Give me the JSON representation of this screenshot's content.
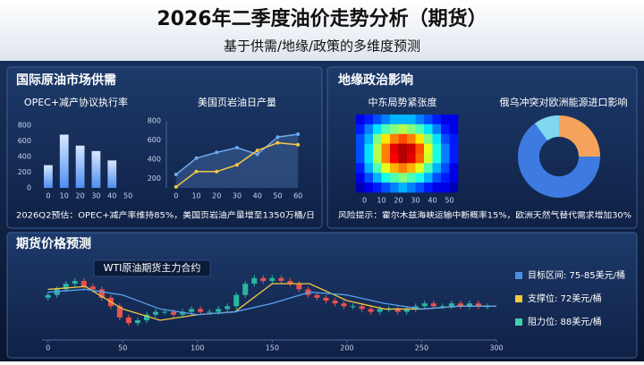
{
  "header": {
    "title": "2026年二季度油价走势分析（期货）",
    "subtitle": "基于供需/地缘/政策的多维度预测"
  },
  "panels": [
    {
      "title": "国际原油市场供需",
      "note": "2026Q2预估：OPEC+减产率维持85%，美国页岩油产量增至1350万桶/日"
    },
    {
      "title": "地缘政治影响",
      "note": "风险提示：霍尔木兹海峡运输中断概率15%，欧洲天然气替代需求增加30%"
    },
    {
      "title": "期货价格预测"
    }
  ],
  "chart_data": [
    {
      "type": "bar",
      "title": "OPEC+减产协议执行率",
      "x": [
        0,
        10,
        20,
        30,
        40
      ],
      "values": [
        290,
        680,
        540,
        470,
        350
      ],
      "color": "#4f8ef0",
      "xlim": [
        -5,
        55
      ],
      "xticks": [
        0,
        10,
        20,
        30,
        40,
        50
      ],
      "ylim": [
        0,
        800
      ],
      "yticks": [
        0,
        200,
        400,
        600,
        800
      ]
    },
    {
      "type": "line",
      "title": "美国页岩油日产量",
      "x": [
        0,
        10,
        20,
        30,
        40,
        50,
        60
      ],
      "series": [
        {
          "color": "#6fa8f0",
          "values": [
            240,
            410,
            470,
            520,
            450,
            630,
            660
          ]
        },
        {
          "color": "#f5c842",
          "values": [
            110,
            270,
            270,
            340,
            490,
            570,
            550
          ]
        }
      ],
      "xlim": [
        -3,
        63
      ],
      "xticks": [
        0,
        10,
        20,
        30,
        40,
        50,
        60
      ],
      "ylim": [
        100,
        800
      ],
      "yticks": [
        200,
        400,
        600,
        800
      ]
    },
    {
      "type": "heatmap",
      "title": "中东局势紧张度",
      "colormap": "jet",
      "xlim": [
        -5,
        55
      ],
      "xticks": [
        0,
        10,
        20,
        30,
        40,
        50
      ],
      "values": [
        [
          0.1,
          0.15,
          0.2,
          0.25,
          0.3,
          0.3,
          0.3,
          0.25,
          0.2,
          0.15,
          0.1,
          0.1
        ],
        [
          0.15,
          0.25,
          0.35,
          0.45,
          0.5,
          0.55,
          0.5,
          0.45,
          0.35,
          0.25,
          0.15,
          0.1
        ],
        [
          0.2,
          0.3,
          0.5,
          0.65,
          0.75,
          0.8,
          0.75,
          0.65,
          0.5,
          0.35,
          0.2,
          0.15
        ],
        [
          0.2,
          0.35,
          0.55,
          0.75,
          0.9,
          0.95,
          0.92,
          0.8,
          0.6,
          0.4,
          0.25,
          0.15
        ],
        [
          0.2,
          0.35,
          0.55,
          0.75,
          0.88,
          0.95,
          0.9,
          0.78,
          0.58,
          0.4,
          0.25,
          0.15
        ],
        [
          0.15,
          0.3,
          0.45,
          0.6,
          0.7,
          0.75,
          0.7,
          0.6,
          0.45,
          0.3,
          0.2,
          0.1
        ],
        [
          0.1,
          0.2,
          0.3,
          0.4,
          0.45,
          0.5,
          0.45,
          0.4,
          0.3,
          0.2,
          0.15,
          0.1
        ],
        [
          0.05,
          0.1,
          0.15,
          0.2,
          0.25,
          0.3,
          0.25,
          0.2,
          0.15,
          0.1,
          0.1,
          0.05
        ]
      ]
    },
    {
      "type": "pie",
      "title": "俄乌冲突对欧洲能源进口影响",
      "donut": true,
      "values": [
        25,
        65,
        10
      ],
      "colors": [
        "#f5a35c",
        "#3d7be0",
        "#7fd8f0"
      ]
    },
    {
      "type": "candlestick",
      "title": "WTI原油期货主力合约",
      "up_color": "#2bb5a0",
      "down_color": "#e8534f",
      "x": [
        0,
        6,
        12,
        18,
        24,
        30,
        36,
        42,
        48,
        54,
        60,
        66,
        72,
        78,
        84,
        90,
        96,
        102,
        108,
        114,
        120,
        126,
        132,
        138,
        144,
        150,
        156,
        162,
        168,
        174,
        180,
        186,
        192,
        198,
        204,
        210,
        216,
        222,
        228,
        234,
        240,
        246,
        252,
        258,
        264,
        270,
        276,
        282,
        288,
        294
      ],
      "open": [
        79,
        80,
        82,
        84,
        85,
        83,
        82,
        79,
        76,
        72,
        70,
        71,
        73,
        74,
        74,
        73,
        74,
        75,
        74,
        74,
        75,
        76,
        80,
        84,
        86,
        85,
        86,
        85,
        84,
        82,
        80,
        79,
        78,
        77,
        76,
        76,
        75,
        74,
        75,
        75,
        74,
        75,
        76,
        77,
        76,
        76,
        77,
        76,
        77,
        76
      ],
      "high": [
        81,
        83,
        85,
        86,
        86,
        84,
        83,
        80,
        77,
        73,
        72,
        74,
        75,
        75,
        75,
        75,
        76,
        76,
        75,
        76,
        77,
        81,
        85,
        87,
        87,
        87,
        87,
        86,
        85,
        83,
        81,
        80,
        79,
        78,
        77,
        77,
        76,
        76,
        76,
        76,
        76,
        77,
        78,
        78,
        77,
        78,
        78,
        78,
        78,
        77
      ],
      "low": [
        78,
        79,
        81,
        83,
        82,
        81,
        78,
        75,
        71,
        69,
        69,
        70,
        72,
        73,
        72,
        72,
        73,
        73,
        73,
        73,
        74,
        75,
        79,
        83,
        84,
        84,
        84,
        83,
        81,
        79,
        78,
        77,
        76,
        75,
        75,
        74,
        73,
        73,
        74,
        73,
        73,
        74,
        75,
        75,
        75,
        75,
        75,
        75,
        75,
        75
      ],
      "close": [
        80,
        82,
        84,
        85,
        83,
        82,
        79,
        76,
        72,
        70,
        71,
        73,
        74,
        74,
        73,
        74,
        75,
        74,
        74,
        75,
        76,
        80,
        84,
        86,
        85,
        86,
        85,
        84,
        82,
        80,
        79,
        78,
        77,
        76,
        76,
        75,
        74,
        75,
        75,
        74,
        75,
        76,
        77,
        76,
        76,
        77,
        76,
        77,
        76,
        76
      ],
      "lines": [
        {
          "color": "#f5c842",
          "x": [
            0,
            25,
            50,
            75,
            100,
            125,
            150,
            175,
            200,
            225,
            250,
            275,
            300
          ],
          "values": [
            82,
            83,
            75,
            71,
            73,
            74,
            84,
            84,
            78,
            75,
            75,
            76,
            76
          ]
        },
        {
          "color": "#5aa0f0",
          "x": [
            0,
            25,
            50,
            75,
            100,
            125,
            150,
            175,
            200,
            225,
            250,
            275,
            300
          ],
          "values": [
            81,
            82,
            80,
            75,
            73,
            74,
            77,
            81,
            80,
            77,
            75,
            76,
            76
          ]
        }
      ],
      "xlim": [
        -4,
        300
      ],
      "xticks": [
        0,
        50,
        100,
        150,
        200,
        250,
        300
      ],
      "ylim": [
        64,
        92
      ],
      "annotations": [
        {
          "text": "目标区间: 75-85美元/桶",
          "color": "#4a90e2"
        },
        {
          "text": "支撑位: 72美元/桶",
          "color": "#f5c842"
        },
        {
          "text": "阻力位: 88美元/桶",
          "color": "#3fd0b0"
        }
      ]
    }
  ]
}
